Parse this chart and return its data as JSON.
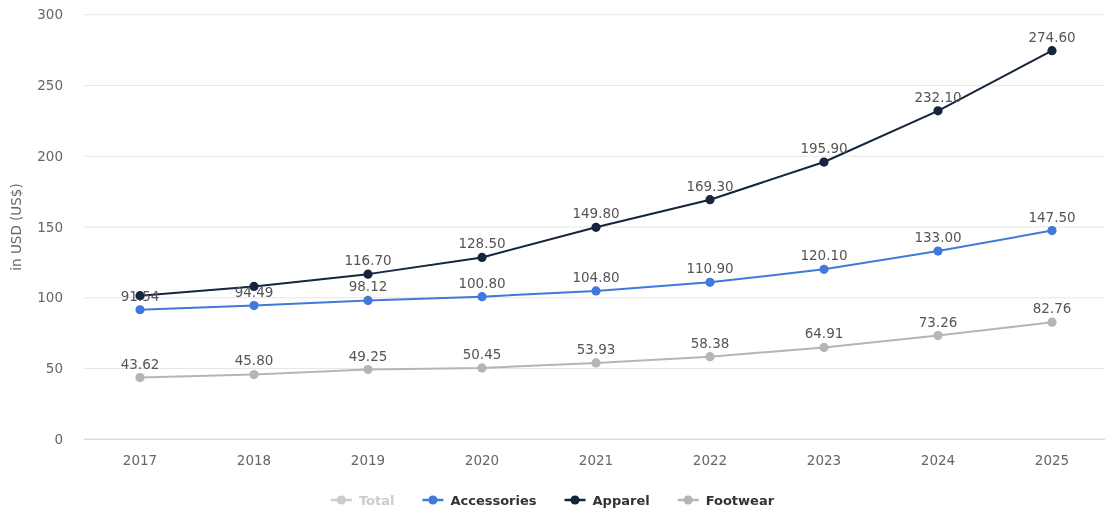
{
  "chart_data": {
    "type": "line",
    "ylabel": "in USD (US$)",
    "categories": [
      "2017",
      "2018",
      "2019",
      "2020",
      "2021",
      "2022",
      "2023",
      "2024",
      "2025"
    ],
    "series": [
      {
        "name": "Total",
        "color": "#cccccc",
        "values": [
          null,
          null,
          null,
          null,
          null,
          null,
          null,
          null,
          null
        ]
      },
      {
        "name": "Accessories",
        "color": "#4178dc",
        "values": [
          91.54,
          94.49,
          98.12,
          100.8,
          104.8,
          110.9,
          120.1,
          133,
          147.5
        ],
        "value_labels": [
          "91.54",
          "94.49",
          "98.12",
          "100.80",
          "104.80",
          "110.90",
          "120.10",
          "133.00",
          "147.50"
        ]
      },
      {
        "name": "Apparel",
        "color": "#14253d",
        "values": [
          101.5,
          108,
          116.7,
          128.5,
          149.8,
          169.3,
          195.9,
          232.1,
          274.6
        ],
        "value_labels": [
          null,
          null,
          "116.70",
          "128.50",
          "149.80",
          "169.30",
          "195.90",
          "232.10",
          "274.60"
        ]
      },
      {
        "name": "Footwear",
        "color": "#b5b5b5",
        "values": [
          43.62,
          45.8,
          49.25,
          50.45,
          53.93,
          58.38,
          64.91,
          73.26,
          82.76
        ],
        "value_labels": [
          "43.62",
          "45.80",
          "49.25",
          "50.45",
          "53.93",
          "58.38",
          "64.91",
          "73.26",
          "82.76"
        ]
      }
    ],
    "ylim": [
      0,
      300
    ],
    "yticks": [
      0,
      50,
      100,
      150,
      200,
      250,
      300
    ],
    "grid": "y",
    "legend": "bottom",
    "marker": "circle"
  }
}
